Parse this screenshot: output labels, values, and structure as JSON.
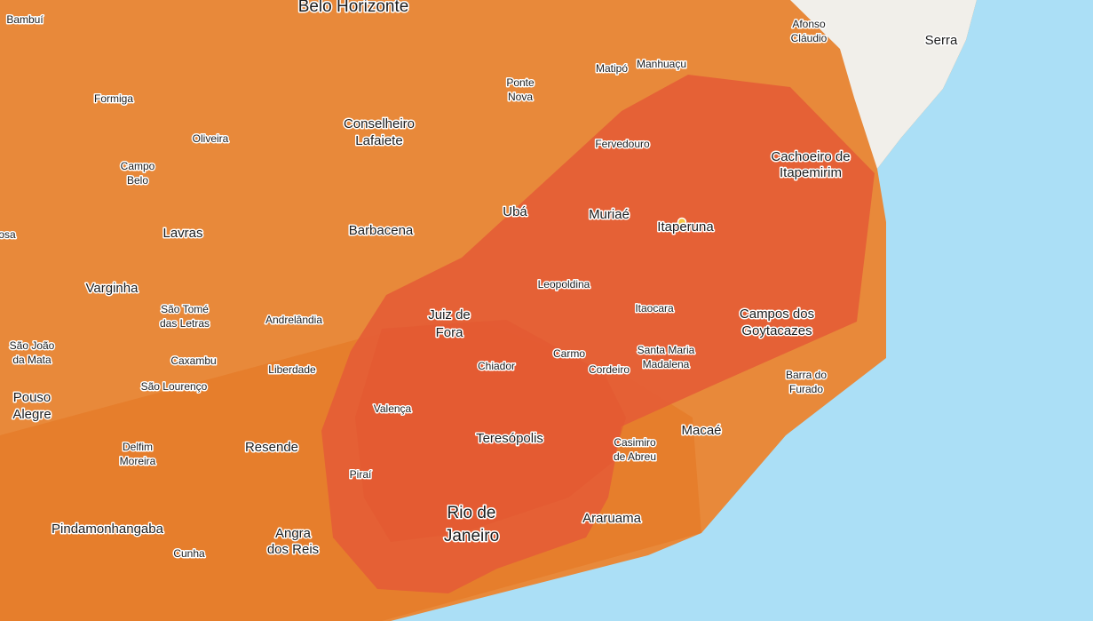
{
  "places": [
    [
      "Belo Horizonte"
    ],
    [
      "Bambuí"
    ],
    [
      "Formiga"
    ],
    [
      "Oliveira"
    ],
    [
      "Campo",
      "Belo"
    ],
    [
      "Conselheiro",
      "Lafaiete"
    ],
    [
      "Ponte",
      "Nova"
    ],
    [
      "Matipó"
    ],
    [
      "Manhuaçu"
    ],
    [
      "Afonso",
      "Cláudio"
    ],
    [
      "Serra"
    ],
    [
      "Fervedouro"
    ],
    [
      "Cachoeiro de",
      "Itapemirim"
    ],
    [
      "Ubá"
    ],
    [
      "Muriaé"
    ],
    [
      "Itaperuna"
    ],
    [
      "Barbacena"
    ],
    [
      "Lavras"
    ],
    [
      "osa"
    ],
    [
      "Varginha"
    ],
    [
      "Leopoldina"
    ],
    [
      "São Tomé",
      "das Letras"
    ],
    [
      "Andrelândia"
    ],
    [
      "Juiz de",
      "Fora"
    ],
    [
      "Itaocara"
    ],
    [
      "Campos dos",
      "Goytacazes"
    ],
    [
      "São João",
      "da Mata"
    ],
    [
      "Caxambu"
    ],
    [
      "Liberdade"
    ],
    [
      "São Lourenço"
    ],
    [
      "Chiador"
    ],
    [
      "Carmo"
    ],
    [
      "Cordeiro"
    ],
    [
      "Santa Maria",
      "Madalena"
    ],
    [
      "Barra do",
      "Furado"
    ],
    [
      "Pouso",
      "Alegre"
    ],
    [
      "Valença"
    ],
    [
      "Teresópolis"
    ],
    [
      "Casimiro",
      "de Abreu"
    ],
    [
      "Macaé"
    ],
    [
      "Resende"
    ],
    [
      "Delfim",
      "Moreira"
    ],
    [
      "Piraí"
    ],
    [
      "Rio de",
      "Janeiro"
    ],
    [
      "Araruama"
    ],
    [
      "Pindamonhangaba"
    ],
    [
      "Angra",
      "dos Reis"
    ],
    [
      "Cunha"
    ]
  ]
}
